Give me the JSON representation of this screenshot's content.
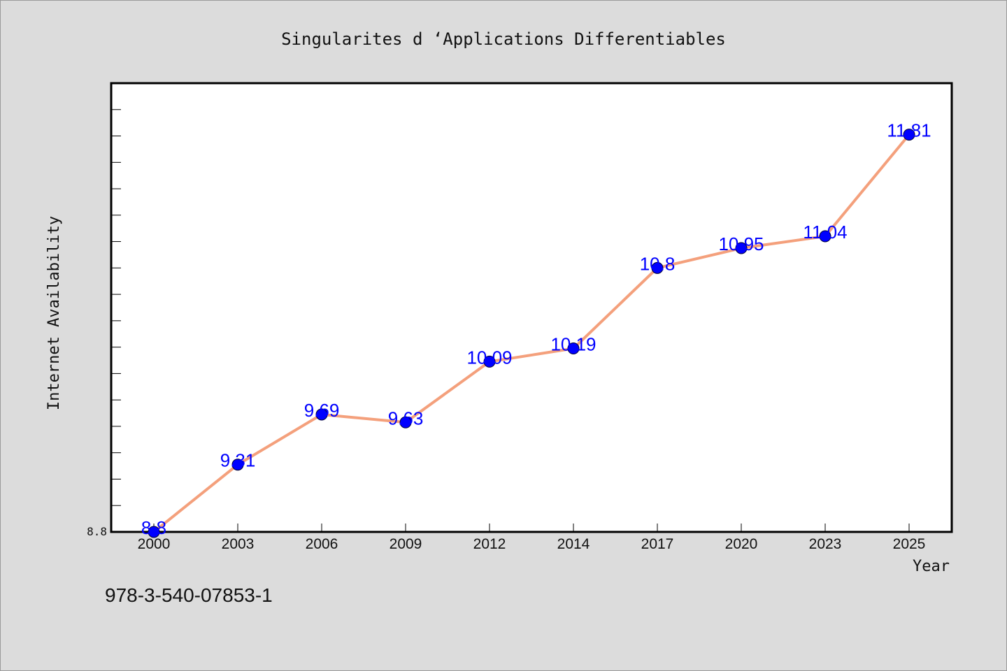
{
  "chart_data": {
    "type": "line",
    "title": "Singularites d ‘Applications Differentiables",
    "xlabel": "Year",
    "ylabel": "Internet Availability",
    "categories": [
      "2000",
      "2003",
      "2006",
      "2009",
      "2012",
      "2014",
      "2017",
      "2020",
      "2023",
      "2025"
    ],
    "series": [
      {
        "values": [
          8.8,
          9.31,
          9.69,
          9.63,
          10.09,
          10.19,
          10.8,
          10.95,
          11.04,
          11.81
        ]
      }
    ],
    "data_labels": [
      "8.8",
      "9.31",
      "9.69",
      "9.63",
      "10.09",
      "10.19",
      "10.8",
      "10.95",
      "11.04",
      "11.81"
    ],
    "y_tick_labels": [
      "8.8"
    ],
    "ylim": [
      8.8,
      12.2
    ],
    "grid": false,
    "line_color": "#f4a07c",
    "marker_color": "#0000ff",
    "label_color": "#0000ff"
  },
  "footer": {
    "isbn": "978-3-540-07853-1"
  }
}
